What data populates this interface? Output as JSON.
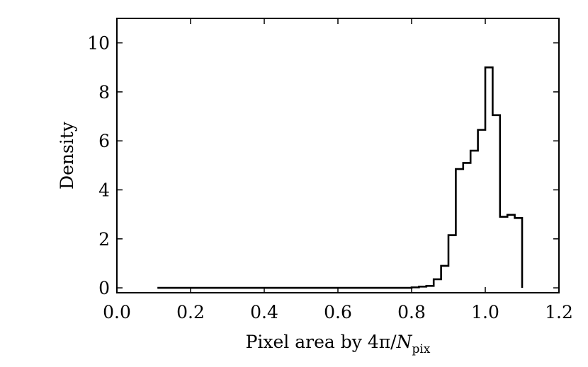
{
  "chart_data": {
    "type": "histogram",
    "xlabel": {
      "text": "Pixel area by ",
      "math_prefix": "4π/",
      "math_var": "N",
      "math_sub": "pix"
    },
    "ylabel": "Density",
    "xlim": [
      0.0,
      1.2
    ],
    "ylim": [
      -0.2,
      11
    ],
    "xticks": [
      0.0,
      0.2,
      0.4,
      0.6,
      0.8,
      1.0,
      1.2
    ],
    "xtick_labels": [
      "0.0",
      "0.2",
      "0.4",
      "0.6",
      "0.8",
      "1.0",
      "1.2"
    ],
    "yticks": [
      0,
      2,
      4,
      6,
      8,
      10
    ],
    "ytick_labels": [
      "0",
      "2",
      "4",
      "6",
      "8",
      "10"
    ],
    "grid": false,
    "step_line": {
      "x": [
        0.11,
        0.8,
        0.82,
        0.84,
        0.86,
        0.88,
        0.9,
        0.92,
        0.94,
        0.96,
        0.98,
        1.0,
        1.02,
        1.04,
        1.06,
        1.08,
        1.1
      ],
      "y": [
        0.0,
        0.02,
        0.05,
        0.08,
        0.35,
        0.9,
        2.15,
        4.85,
        5.1,
        5.6,
        6.45,
        9.0,
        7.05,
        2.9,
        2.98,
        2.85
      ]
    },
    "line_color": "#000000"
  }
}
